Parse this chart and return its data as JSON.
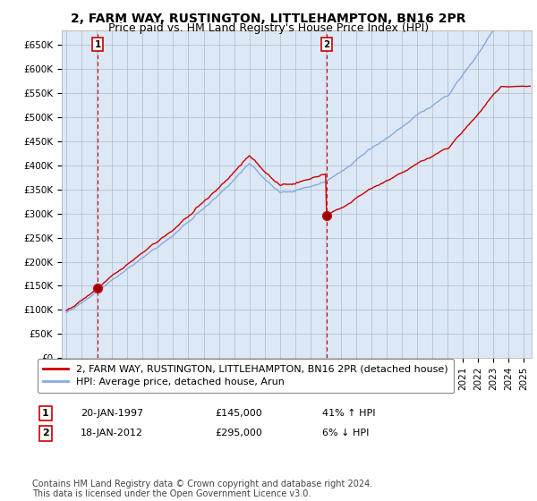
{
  "title": "2, FARM WAY, RUSTINGTON, LITTLEHAMPTON, BN16 2PR",
  "subtitle": "Price paid vs. HM Land Registry's House Price Index (HPI)",
  "ylabel_ticks": [
    "£0",
    "£50K",
    "£100K",
    "£150K",
    "£200K",
    "£250K",
    "£300K",
    "£350K",
    "£400K",
    "£450K",
    "£500K",
    "£550K",
    "£600K",
    "£650K"
  ],
  "ytick_vals": [
    0,
    50000,
    100000,
    150000,
    200000,
    250000,
    300000,
    350000,
    400000,
    450000,
    500000,
    550000,
    600000,
    650000
  ],
  "ylim": [
    0,
    680000
  ],
  "xlim_start": 1994.7,
  "xlim_end": 2025.5,
  "sale1_x": 1997.05,
  "sale1_y": 145000,
  "sale1_label": "1",
  "sale1_date": "20-JAN-1997",
  "sale1_price": "£145,000",
  "sale1_hpi": "41% ↑ HPI",
  "sale2_x": 2012.05,
  "sale2_y": 295000,
  "sale2_label": "2",
  "sale2_date": "18-JAN-2012",
  "sale2_price": "£295,000",
  "sale2_hpi": "6% ↓ HPI",
  "line1_color": "#cc0000",
  "line2_color": "#88aadd",
  "plot_bg_color": "#dce8f5",
  "grid_color": "#aabbcc",
  "background_color": "#ffffff",
  "legend1_label": "2, FARM WAY, RUSTINGTON, LITTLEHAMPTON, BN16 2PR (detached house)",
  "legend2_label": "HPI: Average price, detached house, Arun",
  "footnote": "Contains HM Land Registry data © Crown copyright and database right 2024.\nThis data is licensed under the Open Government Licence v3.0.",
  "title_fontsize": 10,
  "subtitle_fontsize": 9,
  "tick_fontsize": 7.5,
  "legend_fontsize": 8,
  "footnote_fontsize": 7
}
